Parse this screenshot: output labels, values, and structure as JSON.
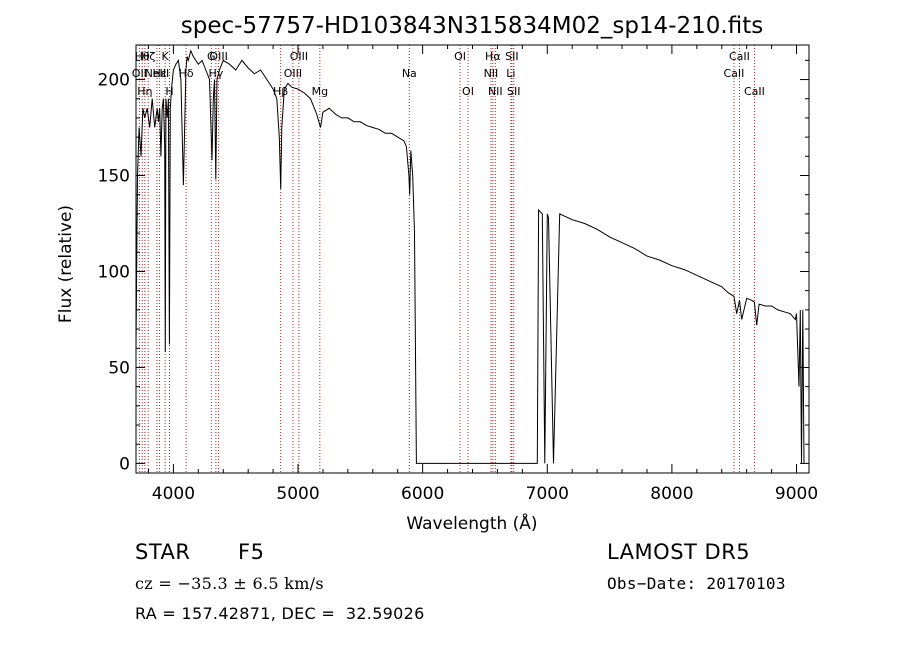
{
  "chart_data": {
    "type": "line",
    "title": "spec-57757-HD103843N315834M02_sp14-210.fits",
    "xlabel": "Wavelength (Å)",
    "ylabel": "Flux (relative)",
    "xlim": [
      3700,
      9100
    ],
    "ylim": [
      -5,
      218
    ],
    "xticks": [
      4000,
      5000,
      6000,
      7000,
      8000,
      9000
    ],
    "yticks": [
      0,
      50,
      100,
      150,
      200
    ],
    "grid": false,
    "series": [
      {
        "x": [
          3700,
          3712,
          3725,
          3740,
          3755,
          3770,
          3790,
          3810,
          3830,
          3850,
          3860,
          3870,
          3880,
          3890,
          3900,
          3910,
          3920,
          3930,
          3935,
          3940,
          3950,
          3960,
          3968,
          3975,
          3985,
          4000,
          4020,
          4040,
          4060,
          4080,
          4100,
          4110,
          4120,
          4140,
          4160,
          4180,
          4200,
          4230,
          4260,
          4290,
          4310,
          4320,
          4330,
          4340,
          4350,
          4370,
          4400,
          4450,
          4500,
          4550,
          4600,
          4650,
          4700,
          4750,
          4800,
          4830,
          4850,
          4861,
          4870,
          4890,
          4920,
          4950,
          5000,
          5050,
          5100,
          5150,
          5180,
          5200,
          5250,
          5300,
          5350,
          5400,
          5450,
          5500,
          5550,
          5600,
          5650,
          5700,
          5750,
          5800,
          5850,
          5870,
          5890,
          5896,
          5905,
          5920,
          5935,
          5950,
          6000,
          6500,
          6900,
          6920,
          6930,
          6960,
          6980,
          7000,
          7010,
          7050,
          7100,
          7200,
          7300,
          7400,
          7500,
          7600,
          7700,
          7800,
          7900,
          8000,
          8100,
          8200,
          8300,
          8400,
          8450,
          8498,
          8520,
          8542,
          8560,
          8600,
          8640,
          8662,
          8680,
          8700,
          8750,
          8800,
          8850,
          8900,
          8950,
          8990,
          9000,
          9020,
          9030,
          9040,
          9050,
          9060
        ],
        "y": [
          60,
          150,
          175,
          160,
          185,
          180,
          185,
          175,
          190,
          175,
          180,
          185,
          178,
          185,
          160,
          185,
          190,
          165,
          58,
          190,
          180,
          190,
          62,
          185,
          195,
          205,
          208,
          210,
          200,
          145,
          205,
          212,
          210,
          215,
          212,
          210,
          208,
          210,
          205,
          200,
          158,
          190,
          200,
          148,
          200,
          205,
          210,
          208,
          205,
          210,
          206,
          203,
          205,
          200,
          195,
          190,
          170,
          143,
          175,
          195,
          198,
          196,
          195,
          193,
          190,
          182,
          175,
          183,
          185,
          182,
          180,
          180,
          178,
          178,
          176,
          175,
          174,
          172,
          172,
          170,
          168,
          165,
          150,
          140,
          163,
          150,
          120,
          0,
          0,
          0,
          0,
          0,
          132,
          130,
          0,
          130,
          128,
          0,
          130,
          127,
          125,
          122,
          118,
          115,
          112,
          108,
          106,
          103,
          101,
          98,
          95,
          92,
          89,
          87,
          78,
          85,
          75,
          86,
          85,
          84,
          72,
          83,
          82,
          82,
          80,
          79,
          78,
          75,
          78,
          40,
          80,
          0,
          80,
          0
        ]
      }
    ],
    "lines": [
      {
        "x": 3727,
        "label": "OII",
        "row": 1
      },
      {
        "x": 3750,
        "label": "Hθ",
        "row": 0
      },
      {
        "x": 3771,
        "label": "Hη",
        "row": 2
      },
      {
        "x": 3798,
        "label": "Hζ",
        "row": 0
      },
      {
        "x": 3868,
        "label": "NeIII",
        "row": 1
      },
      {
        "x": 3889,
        "label": "Hε",
        "row": 1
      },
      {
        "x": 3934,
        "label": "K",
        "row": 0
      },
      {
        "x": 3969,
        "label": "H",
        "row": 2
      },
      {
        "x": 4102,
        "label": "Hδ",
        "row": 1
      },
      {
        "x": 4304,
        "label": "G",
        "row": 0
      },
      {
        "x": 4341,
        "label": "Hγ",
        "row": 1
      },
      {
        "x": 4363,
        "label": "OIII",
        "row": 0
      },
      {
        "x": 4861,
        "label": "Hβ",
        "row": 2
      },
      {
        "x": 4959,
        "label": "OIII",
        "row": 1
      },
      {
        "x": 5007,
        "label": "OIII",
        "row": 0
      },
      {
        "x": 5175,
        "label": "Mg",
        "row": 2
      },
      {
        "x": 5893,
        "label": "Na",
        "row": 1
      },
      {
        "x": 6300,
        "label": "OI",
        "row": 0
      },
      {
        "x": 6364,
        "label": "OI",
        "row": 2
      },
      {
        "x": 6548,
        "label": "NII",
        "row": 1
      },
      {
        "x": 6563,
        "label": "Hα",
        "row": 0
      },
      {
        "x": 6583,
        "label": "NII",
        "row": 2
      },
      {
        "x": 6708,
        "label": "Li",
        "row": 1
      },
      {
        "x": 6716,
        "label": "SII",
        "row": 0
      },
      {
        "x": 6731,
        "label": "SII",
        "row": 2
      },
      {
        "x": 8498,
        "label": "CaII",
        "row": 1
      },
      {
        "x": 8542,
        "label": "CaII",
        "row": 0
      },
      {
        "x": 8662,
        "label": "CaII",
        "row": 2
      }
    ]
  },
  "info": {
    "object_class": "STAR",
    "subclass": "F5",
    "survey": "LAMOST DR5",
    "cz": "cz = −35.3 ± 6.5 km/s",
    "obs_date": "Obs−Date: 20170103",
    "coords": "RA = 157.42871, DEC =  32.59026"
  }
}
